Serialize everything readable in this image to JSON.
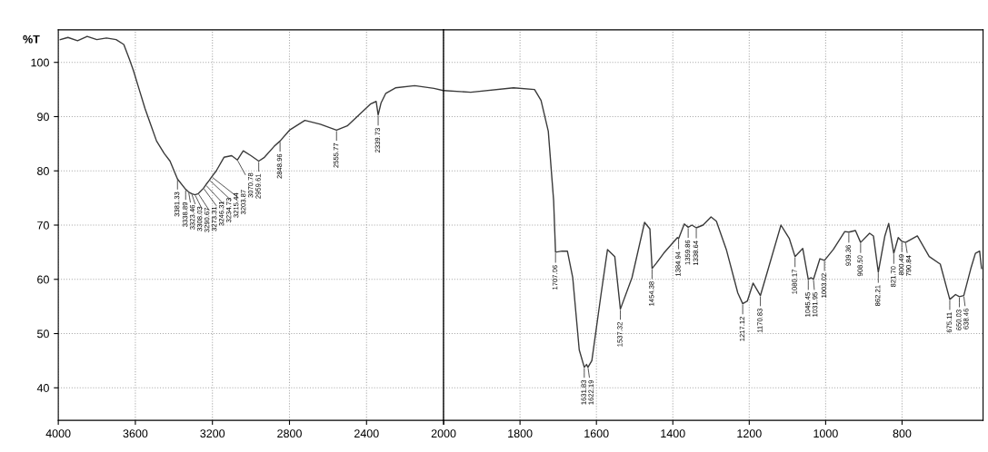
{
  "chart_data": [
    {
      "type": "line",
      "ylabel": "%T",
      "xlim": [
        4000,
        2000
      ],
      "xticks": [
        4000,
        3600,
        3200,
        2800,
        2400,
        2000
      ],
      "ylim": [
        34,
        106
      ],
      "yticks": [
        40,
        50,
        60,
        70,
        80,
        90,
        100
      ],
      "grid": true,
      "line_style": "solid",
      "marker": "none",
      "series": [
        {
          "color": "#3a3a3a",
          "x": [
            3990,
            3950,
            3900,
            3850,
            3800,
            3750,
            3700,
            3660,
            3630,
            3610,
            3580,
            3550,
            3520,
            3490,
            3450,
            3420,
            3381.33,
            3338.89,
            3323.46,
            3308.03,
            3290.67,
            3273.31,
            3246.31,
            3234.73,
            3215.44,
            3203.87,
            3180,
            3140,
            3100,
            3070.78,
            3040,
            3000,
            2959.61,
            2930,
            2880,
            2848.96,
            2800,
            2720,
            2640,
            2555.77,
            2500,
            2440,
            2380,
            2350,
            2339.73,
            2325,
            2300,
            2250,
            2150,
            2050,
            2000
          ],
          "values": [
            104.2,
            104.6,
            104.0,
            104.8,
            104.2,
            104.5,
            104.2,
            103.3,
            100.5,
            98.5,
            95,
            91.5,
            88.5,
            85.5,
            83.2,
            81.8,
            78.5,
            76.6,
            76.1,
            75.8,
            75.6,
            75.8,
            76.8,
            77.4,
            78.3,
            78.9,
            80,
            82.5,
            82.8,
            82,
            83.7,
            82.8,
            81.8,
            82.5,
            84.5,
            85.5,
            87.5,
            89.3,
            88.6,
            87.5,
            88.3,
            90.3,
            92.3,
            92.8,
            90.3,
            92.5,
            94.3,
            95.3,
            95.7,
            95.2,
            94.8
          ]
        }
      ],
      "annotations": [
        {
          "text": "3381.33",
          "x": 3381.33,
          "y": 78.5
        },
        {
          "text": "3338.89",
          "x": 3338.89,
          "y": 76.6
        },
        {
          "text": "3323.46",
          "x": 3323.46,
          "y": 76.1
        },
        {
          "text": "3308.03",
          "x": 3308.03,
          "y": 75.8
        },
        {
          "text": "3290.67",
          "x": 3290.67,
          "y": 75.6
        },
        {
          "text": "3273.31",
          "x": 3273.31,
          "y": 75.8
        },
        {
          "text": "3246.31",
          "x": 3246.31,
          "y": 76.8
        },
        {
          "text": "3234.73",
          "x": 3234.73,
          "y": 77.4
        },
        {
          "text": "3215.44",
          "x": 3215.44,
          "y": 78.3
        },
        {
          "text": "3203.87",
          "x": 3203.87,
          "y": 78.9
        },
        {
          "text": "3070.78",
          "x": 3070.78,
          "y": 82
        },
        {
          "text": "2959.61",
          "x": 2959.61,
          "y": 81.8
        },
        {
          "text": "2848.96",
          "x": 2848.96,
          "y": 85.5
        },
        {
          "text": "2555.77",
          "x": 2555.77,
          "y": 87.5
        },
        {
          "text": "2339.73",
          "x": 2339.73,
          "y": 90.3
        }
      ]
    },
    {
      "type": "line",
      "xlim": [
        2000,
        588
      ],
      "xticks": [
        {
          "value": 2000,
          "label": null
        },
        1800,
        1600,
        1400,
        1200,
        1000,
        800
      ],
      "ylim": [
        34,
        106
      ],
      "yticks": [
        40,
        50,
        60,
        70,
        80,
        90,
        100
      ],
      "grid": true,
      "tick_labels": "x",
      "line_style": "solid",
      "marker": "none",
      "series": [
        {
          "color": "#3a3a3a",
          "x": [
            2000,
            1929,
            1817,
            1762,
            1745,
            1726,
            1712,
            1707.06,
            1690,
            1676,
            1662,
            1645,
            1631.83,
            1626,
            1622.19,
            1612,
            1588,
            1571,
            1552,
            1537.32,
            1507,
            1474,
            1460,
            1454.38,
            1443,
            1424,
            1388,
            1384.94,
            1370,
            1359.86,
            1350,
            1338.64,
            1321,
            1300,
            1286,
            1260,
            1230,
            1217.12,
            1205,
            1190,
            1170.83,
            1150,
            1117,
            1095,
            1080.17,
            1060,
            1045.45,
            1038,
            1031.95,
            1015,
            1003.02,
            980,
            950,
            939.36,
            922,
            908.5,
            885,
            875,
            862.21,
            845,
            835,
            821.7,
            810,
            800.49,
            790.84,
            760,
            729,
            700,
            675.11,
            660,
            650.03,
            638.46,
            620,
            608,
            597,
            592
          ],
          "values": [
            94.8,
            94.5,
            95.3,
            95,
            93,
            87.3,
            74.5,
            65,
            65.2,
            65.2,
            60.3,
            47,
            43.8,
            44.3,
            43.8,
            45,
            57.2,
            65.5,
            64.2,
            54.5,
            60.3,
            70.5,
            69.3,
            62,
            63,
            64.8,
            67.7,
            67.5,
            70.2,
            69.6,
            70,
            69.5,
            70,
            71.5,
            70.7,
            65.5,
            57.5,
            55.5,
            56,
            59.3,
            57,
            62,
            70,
            67.5,
            64.2,
            65.7,
            60,
            60.3,
            60,
            63.8,
            63.5,
            65.5,
            68.8,
            68.7,
            69,
            66.8,
            68.5,
            68,
            61.3,
            68,
            70.3,
            64.8,
            67.7,
            67,
            66.8,
            68,
            64.2,
            62.8,
            56.3,
            57.2,
            56.8,
            57,
            62,
            64.8,
            65.2,
            62
          ]
        }
      ],
      "annotations": [
        {
          "text": "1707.06",
          "x": 1707.06,
          "y": 65
        },
        {
          "text": "1631.83",
          "x": 1631.83,
          "y": 43.8
        },
        {
          "text": "1622.19",
          "x": 1622.19,
          "y": 43.8
        },
        {
          "text": "1537.32",
          "x": 1537.32,
          "y": 54.5
        },
        {
          "text": "1454.38",
          "x": 1454.38,
          "y": 62
        },
        {
          "text": "1384.94",
          "x": 1384.94,
          "y": 67.5
        },
        {
          "text": "1359.86",
          "x": 1359.86,
          "y": 69.6
        },
        {
          "text": "1338.64",
          "x": 1338.64,
          "y": 69.5
        },
        {
          "text": "1217.12",
          "x": 1217.12,
          "y": 55.5
        },
        {
          "text": "1170.83",
          "x": 1170.83,
          "y": 57
        },
        {
          "text": "1080.17",
          "x": 1080.17,
          "y": 64.2
        },
        {
          "text": "1045.45",
          "x": 1045.45,
          "y": 60
        },
        {
          "text": "1031.95",
          "x": 1031.95,
          "y": 60
        },
        {
          "text": "1003.02",
          "x": 1003.02,
          "y": 63.5
        },
        {
          "text": "939.36",
          "x": 939.36,
          "y": 68.7
        },
        {
          "text": "908.50",
          "x": 908.5,
          "y": 66.8
        },
        {
          "text": "862.21",
          "x": 862.21,
          "y": 61.3
        },
        {
          "text": "821.70",
          "x": 821.7,
          "y": 64.8
        },
        {
          "text": "800.49",
          "x": 800.49,
          "y": 67
        },
        {
          "text": "790.84",
          "x": 790.84,
          "y": 66.8
        },
        {
          "text": "675.11",
          "x": 675.11,
          "y": 56.3
        },
        {
          "text": "650.03",
          "x": 650.03,
          "y": 56.8
        },
        {
          "text": "638.46",
          "x": 638.46,
          "y": 57
        }
      ]
    }
  ]
}
